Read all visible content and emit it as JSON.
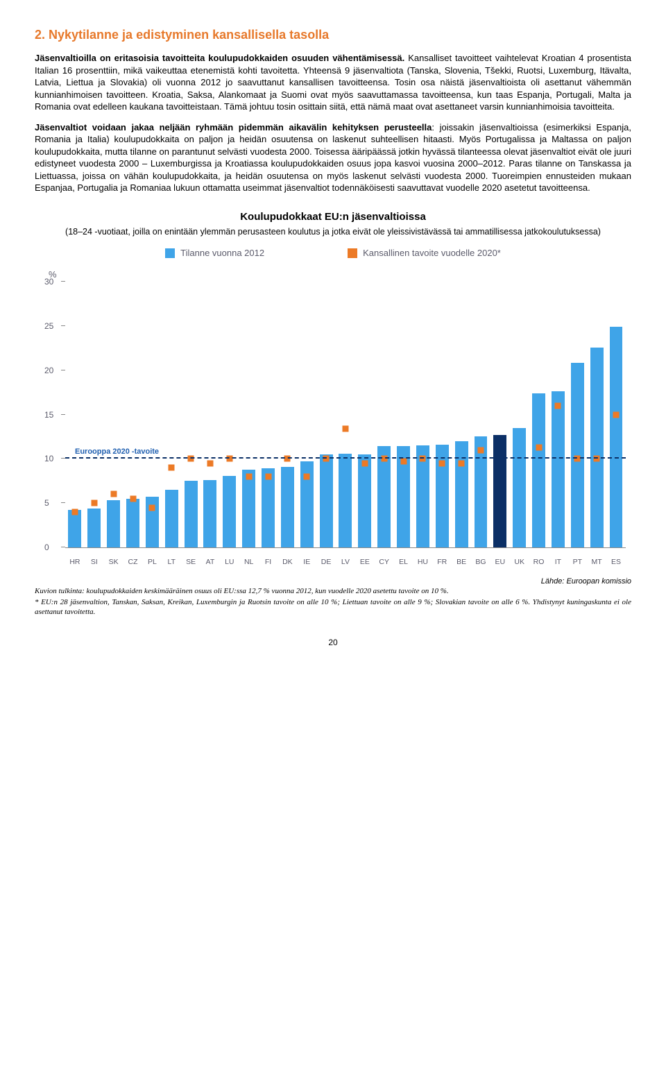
{
  "section": {
    "title": "2. Nykytilanne ja edistyminen kansallisella tasolla",
    "title_color": "#e7792b",
    "para1": "Jäsenvaltioilla on eritasoisia tavoitteita koulupudokkaiden osuuden vähentämisessä. Kansalliset tavoitteet vaihtelevat Kroatian 4 prosentista Italian 16 prosenttiin, mikä vaikeuttaa etenemistä kohti tavoitetta. Yhteensä 9 jäsenvaltiota (Tanska, Slovenia, Tšekki, Ruotsi, Luxemburg, Itävalta, Latvia, Liettua ja Slovakia) oli vuonna 2012 jo saavuttanut kansallisen tavoitteensa. Tosin osa näistä jäsenvaltioista oli asettanut vähemmän kunnianhimoisen tavoitteen. Kroatia, Saksa, Alankomaat ja Suomi ovat myös saavuttamassa tavoitteensa, kun taas Espanja, Portugali, Malta ja Romania ovat edelleen kaukana tavoitteistaan. Tämä johtuu tosin osittain siitä, että nämä maat ovat asettaneet varsin kunnianhimoisia tavoitteita.",
    "para2_lead": "Jäsenvaltiot voidaan jakaa neljään ryhmään pidemmän aikavälin kehityksen perusteella",
    "para2_rest": ": joissakin jäsenvaltioissa (esimerkiksi Espanja, Romania ja Italia) koulupudokkaita on paljon ja heidän osuutensa on laskenut suhteellisen hitaasti. Myös Portugalissa ja Maltassa on paljon koulupudokkaita, mutta tilanne on parantunut selvästi vuodesta 2000. Toisessa ääripäässä jotkin hyvässä tilanteessa olevat jäsenvaltiot eivät ole juuri edistyneet vuodesta 2000 – Luxemburgissa ja Kroatiassa koulupudokkaiden osuus jopa kasvoi vuosina 2000–2012. Paras tilanne on Tanskassa ja Liettuassa, joissa on vähän koulupudokkaita, ja heidän osuutensa on myös laskenut selvästi vuodesta 2000. Tuoreimpien ennusteiden mukaan Espanjaa, Portugalia ja Romaniaa lukuun ottamatta useimmat jäsenvaltiot todennäköisesti saavuttavat vuodelle 2020 asetetut tavoitteensa."
  },
  "chart": {
    "title": "Koulupudokkaat EU:n jäsenvaltioissa",
    "subtitle": "(18–24 -vuotiaat, joilla on enintään ylemmän perusasteen koulutus ja jotka eivät ole yleissivistävässä tai ammatillisessa jatkokoulutuksessa)",
    "legend1": "Tilanne vuonna 2012",
    "legend2": "Kansallinen tavoite vuodelle 2020*",
    "bar_color": "#3fa4e8",
    "bar_color_eu": "#0b2f66",
    "marker_color": "#ec7a26",
    "target_line_color": "#0b2f66",
    "y_axis_label": "%",
    "y_max": 30,
    "y_ticks": [
      0,
      5,
      10,
      15,
      20,
      25,
      30
    ],
    "eu_target_label": "Eurooppa 2020 -tavoite",
    "eu_target_label_color": "#1f5fb0",
    "eu_target_value": 10,
    "countries": [
      "HR",
      "SI",
      "SK",
      "CZ",
      "PL",
      "LT",
      "SE",
      "AT",
      "LU",
      "NL",
      "FI",
      "DK",
      "IE",
      "DE",
      "LV",
      "EE",
      "CY",
      "EL",
      "HU",
      "FR",
      "BE",
      "BG",
      "EU",
      "UK",
      "RO",
      "IT",
      "PT",
      "MT",
      "ES"
    ],
    "values_2012": [
      4.2,
      4.4,
      5.3,
      5.5,
      5.7,
      6.5,
      7.5,
      7.6,
      8.1,
      8.8,
      8.9,
      9.1,
      9.7,
      10.5,
      10.6,
      10.5,
      11.4,
      11.4,
      11.5,
      11.6,
      12.0,
      12.5,
      12.7,
      13.5,
      17.4,
      17.6,
      20.8,
      22.6,
      24.9
    ],
    "national_targets": [
      4.0,
      5.0,
      6.0,
      5.5,
      4.5,
      9.0,
      10.0,
      9.5,
      10.0,
      8.0,
      8.0,
      10.0,
      8.0,
      10.0,
      13.4,
      9.5,
      10.0,
      9.7,
      10.0,
      9.5,
      9.5,
      11.0,
      null,
      null,
      11.3,
      16.0,
      10.0,
      10.0,
      15.0
    ]
  },
  "source": "Lähde: Euroopan komissio",
  "footnote1": "Kuvion tulkinta: koulupudokkaiden keskimääräinen osuus oli EU:ssa 12,7 % vuonna 2012, kun vuodelle 2020 asetettu tavoite on 10 %.",
  "footnote2": "* EU:n 28 jäsenvaltion, Tanskan, Saksan, Kreikan, Luxemburgin ja Ruotsin tavoite on alle 10 %; Liettuan tavoite on alle 9 %; Slovakian tavoite on alle 6 %. Yhdistynyt kuningaskunta ei ole asettanut tavoitetta.",
  "page_number": "20"
}
